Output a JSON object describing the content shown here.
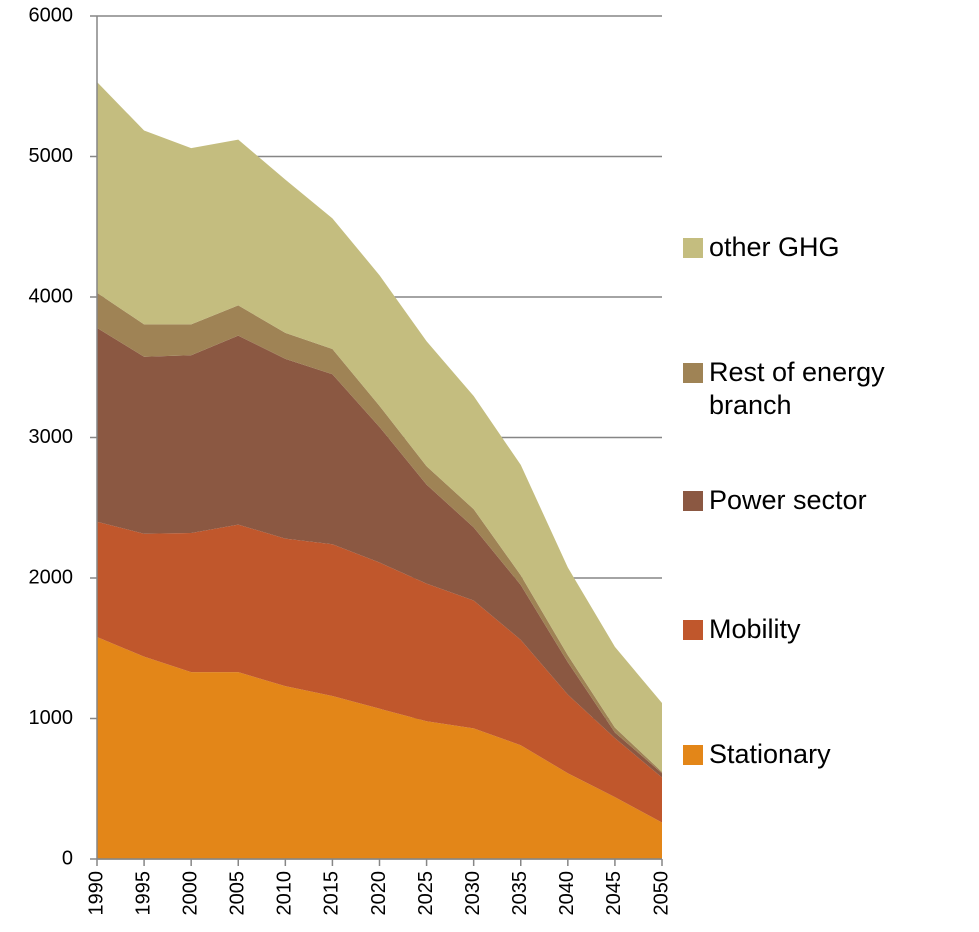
{
  "chart_data": {
    "type": "area",
    "stacked": true,
    "x": [
      1990,
      1995,
      2000,
      2005,
      2010,
      2015,
      2020,
      2025,
      2030,
      2035,
      2040,
      2045,
      2050
    ],
    "xlim": [
      1990,
      2050
    ],
    "xticks": [
      1990,
      1995,
      2000,
      2005,
      2010,
      2015,
      2020,
      2025,
      2030,
      2035,
      2040,
      2045,
      2050
    ],
    "ylim": [
      0,
      6000
    ],
    "yticks": [
      0,
      1000,
      2000,
      3000,
      4000,
      5000,
      6000
    ],
    "grid": true,
    "legend": "right",
    "series": [
      {
        "name": "Stationary",
        "color": "#e38618",
        "values": [
          1580,
          1440,
          1330,
          1330,
          1230,
          1160,
          1070,
          980,
          930,
          810,
          610,
          440,
          260
        ]
      },
      {
        "name": "Mobility",
        "color": "#c0572c",
        "values": [
          820,
          875,
          990,
          1050,
          1050,
          1080,
          1040,
          980,
          910,
          750,
          560,
          420,
          320
        ]
      },
      {
        "name": "Power sector",
        "color": "#8b5842",
        "values": [
          1380,
          1260,
          1265,
          1345,
          1280,
          1210,
          965,
          705,
          520,
          390,
          230,
          40,
          30
        ]
      },
      {
        "name": "Rest of energy branch",
        "color": "#9f8355",
        "values": [
          250,
          230,
          220,
          215,
          185,
          180,
          150,
          130,
          130,
          70,
          50,
          35,
          10
        ]
      },
      {
        "name": "other GHG",
        "color": "#c4bd7f",
        "values": [
          1500,
          1380,
          1255,
          1180,
          1090,
          930,
          930,
          890,
          805,
          785,
          625,
          575,
          490
        ]
      }
    ]
  }
}
